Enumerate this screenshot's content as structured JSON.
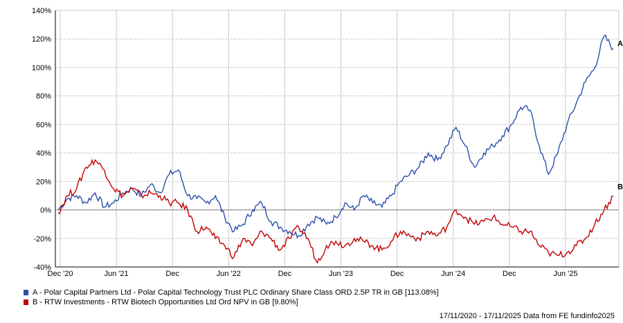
{
  "chart_data": {
    "type": "line",
    "title": "",
    "xlabel": "",
    "ylabel": "",
    "ylim": [
      -40,
      140
    ],
    "yticks": [
      "-40%",
      "-20%",
      "0%",
      "20%",
      "40%",
      "60%",
      "80%",
      "100%",
      "120%",
      "140%"
    ],
    "xticks": [
      "Dec '20",
      "Jun '21",
      "Dec",
      "Jun '22",
      "Dec",
      "Jun '23",
      "Dec",
      "Jun '24",
      "Dec",
      "Jun '25"
    ],
    "x_unit": "months since 17/11/2020",
    "grid": true,
    "series": [
      {
        "name": "A - Polar Capital Partners Ltd - Polar Capital Technology Trust PLC Ordinary Share Class ORD 2.5P TR in GB [113.08%]",
        "end_label": "A",
        "color": "#2a4fa8",
        "values": [
          0,
          8,
          10,
          5,
          12,
          2,
          5,
          12,
          15,
          10,
          18,
          12,
          25,
          28,
          10,
          8,
          5,
          10,
          -5,
          -15,
          -10,
          0,
          5,
          -8,
          -12,
          -15,
          -18,
          -10,
          -5,
          -10,
          -5,
          5,
          0,
          10,
          5,
          2,
          10,
          20,
          25,
          30,
          40,
          35,
          45,
          58,
          45,
          30,
          40,
          45,
          52,
          60,
          72,
          70,
          45,
          25,
          40,
          60,
          75,
          90,
          100,
          122,
          113.08
        ]
      },
      {
        "name": "B - RTW Investments - RTW Biotech Opportunities Ltd Ord NPV in GB [9.80%]",
        "end_label": "B",
        "color": "#c00000",
        "values": [
          -2,
          10,
          15,
          30,
          35,
          28,
          15,
          10,
          15,
          10,
          12,
          10,
          5,
          5,
          0,
          -15,
          -12,
          -20,
          -25,
          -33,
          -20,
          -25,
          -15,
          -20,
          -28,
          -20,
          -12,
          -20,
          -37,
          -25,
          -22,
          -25,
          -20,
          -22,
          -25,
          -28,
          -22,
          -15,
          -18,
          -20,
          -15,
          -18,
          -12,
          0,
          -5,
          -10,
          -8,
          -5,
          -10,
          -12,
          -15,
          -15,
          -25,
          -30,
          -32,
          -30,
          -25,
          -20,
          -10,
          0,
          9.8
        ]
      }
    ]
  },
  "footer": "17/11/2020 - 17/11/2025 Data from FE fundinfo2025"
}
